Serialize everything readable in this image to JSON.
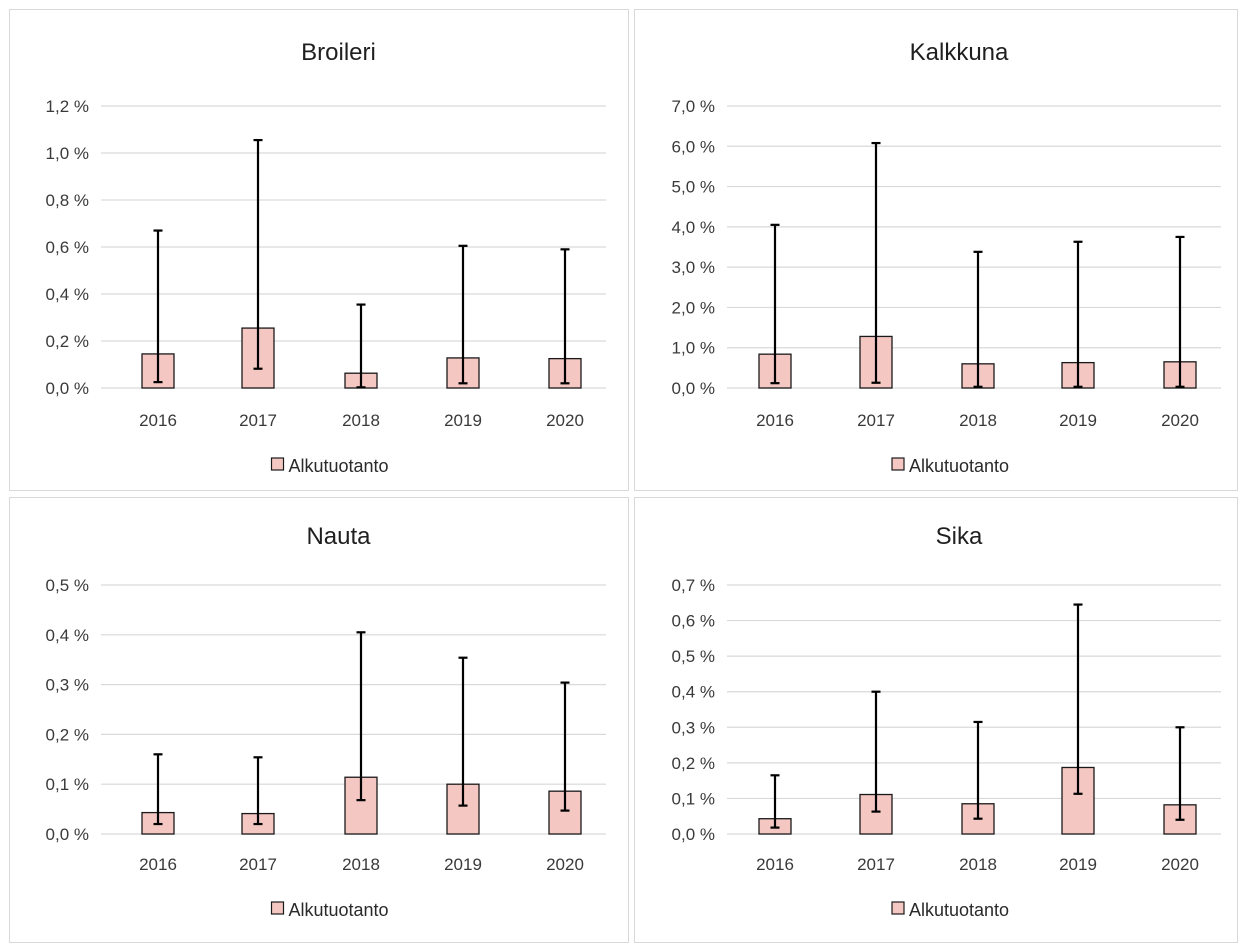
{
  "colors": {
    "bar_fill": "#f4c7c3",
    "bar_stroke": "#1a1a1a",
    "grid": "#d9d9d9",
    "error": "#000000"
  },
  "chart_data": [
    {
      "type": "bar",
      "title": "Broileri",
      "categories": [
        "2016",
        "2017",
        "2018",
        "2019",
        "2020"
      ],
      "series": [
        {
          "name": "Alkutuotanto",
          "values": [
            0.145,
            0.255,
            0.063,
            0.128,
            0.125
          ],
          "error_low": [
            0.025,
            0.082,
            0.003,
            0.02,
            0.02
          ],
          "error_high": [
            0.67,
            1.055,
            0.355,
            0.605,
            0.59
          ]
        }
      ],
      "ylim": [
        0,
        1.2
      ],
      "yticks": [
        0,
        0.2,
        0.4,
        0.6,
        0.8,
        1.0,
        1.2
      ],
      "ytick_labels": [
        "0,0 %",
        "0,2 %",
        "0,4 %",
        "0,6 %",
        "0,8 %",
        "1,0 %",
        "1,2 %"
      ],
      "grid": true,
      "legend": "bottom"
    },
    {
      "type": "bar",
      "title": "Kalkkuna",
      "categories": [
        "2016",
        "2017",
        "2018",
        "2019",
        "2020"
      ],
      "series": [
        {
          "name": "Alkutuotanto",
          "values": [
            0.84,
            1.28,
            0.6,
            0.63,
            0.65
          ],
          "error_low": [
            0.12,
            0.13,
            0.03,
            0.03,
            0.03
          ],
          "error_high": [
            4.05,
            6.08,
            3.38,
            3.63,
            3.75
          ]
        }
      ],
      "ylim": [
        0,
        7.0
      ],
      "yticks": [
        0,
        1,
        2,
        3,
        4,
        5,
        6,
        7
      ],
      "ytick_labels": [
        "0,0 %",
        "1,0 %",
        "2,0 %",
        "3,0 %",
        "4,0 %",
        "5,0 %",
        "6,0 %",
        "7,0 %"
      ],
      "grid": true,
      "legend": "bottom"
    },
    {
      "type": "bar",
      "title": "Nauta",
      "categories": [
        "2016",
        "2017",
        "2018",
        "2019",
        "2020"
      ],
      "series": [
        {
          "name": "Alkutuotanto",
          "values": [
            0.043,
            0.041,
            0.114,
            0.1,
            0.086
          ],
          "error_low": [
            0.02,
            0.02,
            0.068,
            0.057,
            0.047
          ],
          "error_high": [
            0.16,
            0.154,
            0.405,
            0.354,
            0.304
          ]
        }
      ],
      "ylim": [
        0,
        0.5
      ],
      "yticks": [
        0,
        0.1,
        0.2,
        0.3,
        0.4,
        0.5
      ],
      "ytick_labels": [
        "0,0 %",
        "0,1 %",
        "0,2 %",
        "0,3 %",
        "0,4 %",
        "0,5 %"
      ],
      "grid": true,
      "legend": "bottom"
    },
    {
      "type": "bar",
      "title": "Sika",
      "categories": [
        "2016",
        "2017",
        "2018",
        "2019",
        "2020"
      ],
      "series": [
        {
          "name": "Alkutuotanto",
          "values": [
            0.043,
            0.111,
            0.085,
            0.187,
            0.082
          ],
          "error_low": [
            0.018,
            0.063,
            0.043,
            0.113,
            0.04
          ],
          "error_high": [
            0.165,
            0.4,
            0.315,
            0.645,
            0.3
          ]
        }
      ],
      "ylim": [
        0,
        0.7
      ],
      "yticks": [
        0,
        0.1,
        0.2,
        0.3,
        0.4,
        0.5,
        0.6,
        0.7
      ],
      "ytick_labels": [
        "0,0 %",
        "0,1 %",
        "0,2 %",
        "0,3 %",
        "0,4 %",
        "0,5 %",
        "0,6 %",
        "0,7 %"
      ],
      "grid": true,
      "legend": "bottom"
    }
  ]
}
